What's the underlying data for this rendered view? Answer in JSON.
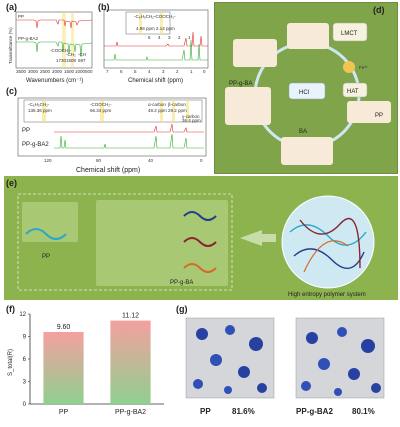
{
  "panel_labels": {
    "a": "(a)",
    "b": "(b)",
    "c": "(c)",
    "d": "(d)",
    "e": "(e)",
    "f": "(f)",
    "g": "(g)"
  },
  "panel_a": {
    "ylabel": "Transmittance (%)",
    "xlabel": "Wavenumbers (cm⁻¹)",
    "series": [
      "PP",
      "PP-g-BA2"
    ],
    "ticks": [
      "3500",
      "3000",
      "2500",
      "2000",
      "1500",
      "1000",
      "500"
    ],
    "annotations": [
      "-COOCH₂-",
      "1730",
      "-CH₂",
      "1508",
      "-CH",
      "697"
    ]
  },
  "panel_b": {
    "xlabel": "Chemical shift (ppm)",
    "ticks": [
      "7",
      "6",
      "5",
      "4",
      "3",
      "2",
      "1",
      "0"
    ],
    "annotations": [
      "-C₆H₅CH₂-",
      "4.98 ppm",
      "-COOCH₂-",
      "2.14 ppm"
    ],
    "peak_labels": [
      "5",
      "4",
      "3",
      "2",
      "1"
    ]
  },
  "panel_c": {
    "xlabel": "Chemical shift (ppm)",
    "ticks": [
      "120",
      "80",
      "40",
      "0"
    ],
    "series": [
      "PP",
      "PP-g-BA2"
    ],
    "annotations": [
      "-C₆H₅CH₂-",
      "136.36 ppm",
      "-COOCH₂-",
      "66.34 ppm",
      "α-carbon",
      "48.2 ppm",
      "β-carbon",
      "29.2 ppm",
      "γ-carbon",
      "36.4 ppm"
    ]
  },
  "panel_d": {
    "labels": [
      "LMCT",
      "Fe³⁺",
      "HAT",
      "PP",
      "BA",
      "HCl",
      "PP-g-BA"
    ]
  },
  "panel_e": {
    "left_label": "PP",
    "right_label": "PP-g-BA",
    "result_label": "High entropy polymer system"
  },
  "chart_data": {
    "type": "bar",
    "categories": [
      "PP",
      "PP-g-BA2"
    ],
    "values": [
      9.6,
      11.12
    ],
    "value_labels": [
      "9.60",
      "11.12"
    ],
    "ylabel": "S_total(R)",
    "ylim": [
      0,
      12
    ],
    "yticks": [
      "0",
      "3",
      "6",
      "9",
      "12"
    ]
  },
  "panel_g": {
    "labels": [
      {
        "name": "PP",
        "value": "81.6%"
      },
      {
        "name": "PP-g-BA2",
        "value": "80.1%"
      }
    ]
  }
}
